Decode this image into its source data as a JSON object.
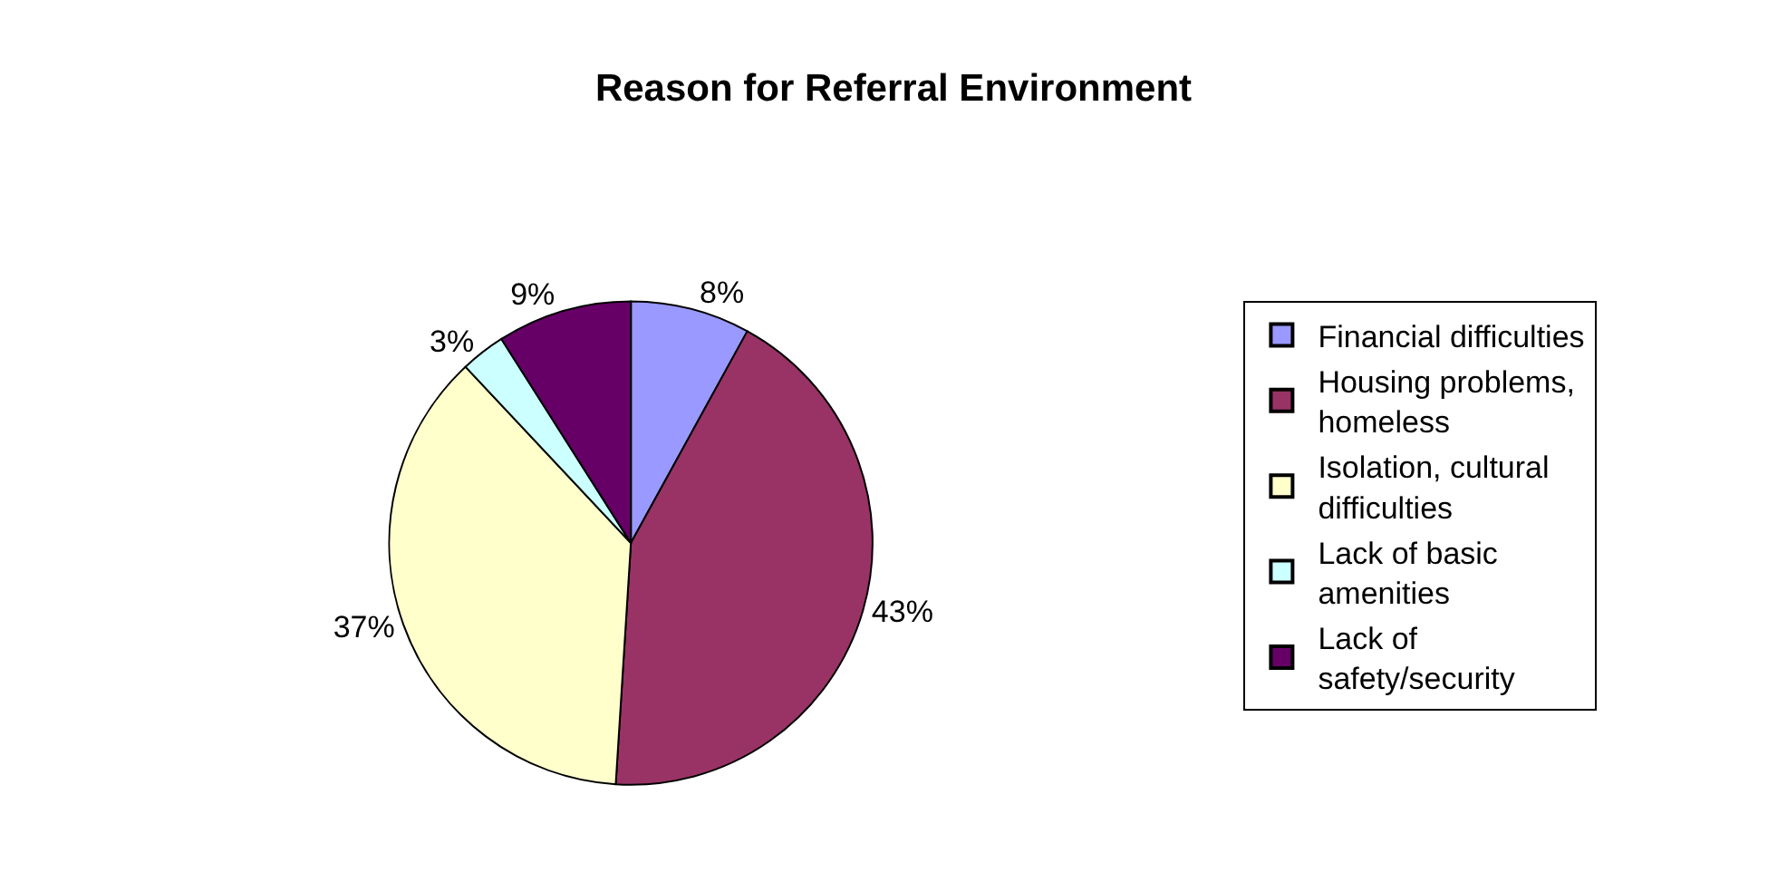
{
  "chart_data": {
    "type": "pie",
    "title": "Reason for Referral Environment",
    "categories": [
      "Financial difficulties",
      "Housing problems, homeless",
      "Isolation, cultural difficulties",
      "Lack of basic amenities",
      "Lack of safety/security"
    ],
    "values": [
      8,
      43,
      37,
      3,
      9
    ],
    "value_labels": [
      "8%",
      "43%",
      "37%",
      "3%",
      "9%"
    ],
    "colors": [
      "#9999ff",
      "#993366",
      "#ffffcc",
      "#ccffff",
      "#660066"
    ],
    "legend": "right"
  }
}
